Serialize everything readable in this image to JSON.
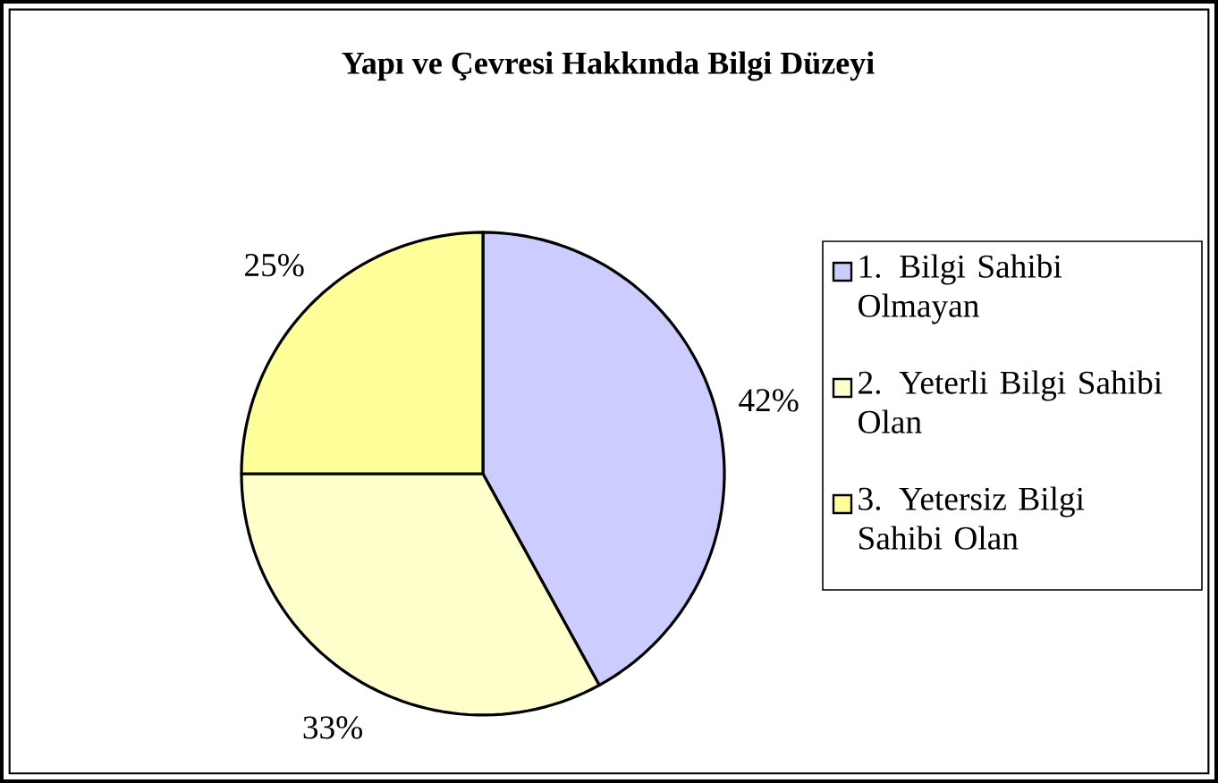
{
  "chart_data": {
    "type": "pie",
    "title": "Yapı ve Çevresi Hakkında Bilgi Düzeyi",
    "categories": [
      "1. Bilgi Sahibi Olmayan",
      "2. Yeterli Bilgi Sahibi Olan",
      "3. Yetersiz Bilgi Sahibi Olan"
    ],
    "values": [
      42,
      33,
      25
    ],
    "value_labels": [
      "42%",
      "33%",
      "25%"
    ],
    "colors": [
      "#ccccff",
      "#ffffcc",
      "#ffff99"
    ],
    "legend": "right"
  }
}
